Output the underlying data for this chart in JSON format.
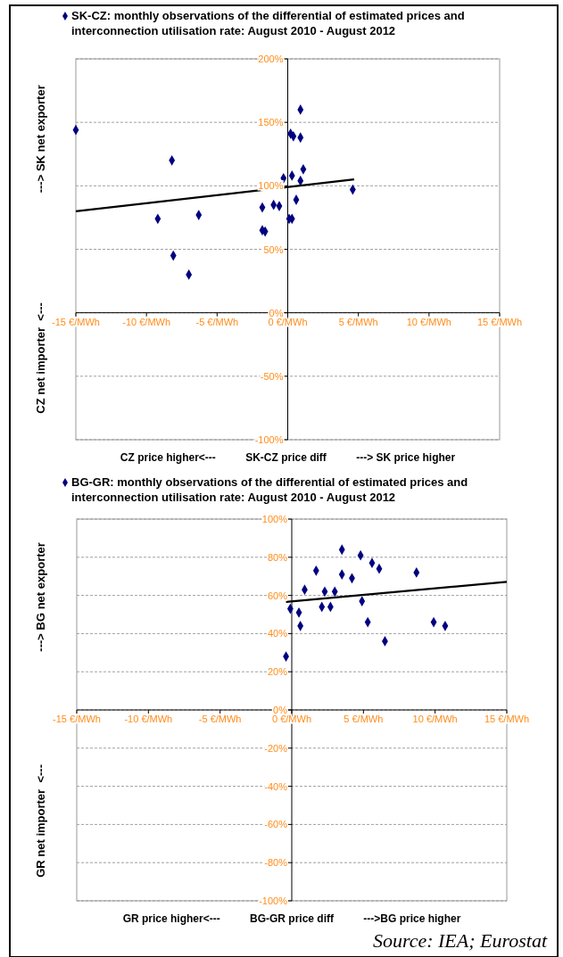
{
  "chart_data": [
    {
      "type": "scatter",
      "legend": "top",
      "marker": "diamond",
      "grid": "y",
      "xlabel": "CZ price higher<---          SK-CZ price diff          ---> SK price higher",
      "ylabel": "CZ net importer  <---                                  ---> SK net exporter",
      "xlim": [
        -15,
        15
      ],
      "ylim": [
        -100,
        200
      ],
      "xticks": [
        {
          "value": -15,
          "label": "-15 €/MWh"
        },
        {
          "value": -10,
          "label": "-10 €/MWh"
        },
        {
          "value": -5,
          "label": "-5 €/MWh"
        },
        {
          "value": 0,
          "label": "0 €/MWh"
        },
        {
          "value": 5,
          "label": "5 €/MWh"
        },
        {
          "value": 10,
          "label": "10 €/MWh"
        },
        {
          "value": 15,
          "label": "15 €/MWh"
        }
      ],
      "yticks": [
        {
          "value": -100,
          "label": "-100%"
        },
        {
          "value": -50,
          "label": "-50%"
        },
        {
          "value": 0,
          "label": "0%"
        },
        {
          "value": 50,
          "label": "50%"
        },
        {
          "value": 100,
          "label": "100%"
        },
        {
          "value": 150,
          "label": "150%"
        },
        {
          "value": 200,
          "label": "200%"
        }
      ],
      "series": [
        {
          "name": "SK-CZ: monthly observations of the differential of estimated prices and interconnection utilisation rate: August 2010 - August 2012",
          "color": "#000080",
          "x": [
            -15,
            0.9,
            0.2,
            0.4,
            0.9,
            -8.2,
            1.1,
            -0.3,
            0.3,
            0.9,
            4.6,
            0.6,
            -1.8,
            -1.0,
            -0.6,
            -9.2,
            -6.3,
            0.1,
            0.3,
            -1.8,
            -1.6,
            -8.1,
            -7.0
          ],
          "values": [
            144,
            160,
            141,
            139,
            138,
            120,
            113,
            106,
            108,
            104,
            97,
            89,
            83,
            85,
            84,
            74,
            77,
            74,
            74,
            65,
            64,
            45,
            30
          ]
        },
        {
          "type": "line",
          "color": "#000000",
          "marker": "none",
          "x": [
            -15,
            4.7
          ],
          "values": [
            80,
            105
          ]
        }
      ]
    },
    {
      "type": "scatter",
      "legend": "top",
      "marker": "diamond",
      "grid": "y",
      "xlabel": "GR price higher<---          BG-GR price diff          --->BG price higher",
      "ylabel": "GR net importer  <---                                   ---> BG net exporter",
      "xlim": [
        -15,
        15
      ],
      "ylim": [
        -100,
        100
      ],
      "xticks": [
        {
          "value": -15,
          "label": "-15 €/MWh"
        },
        {
          "value": -10,
          "label": "-10 €/MWh"
        },
        {
          "value": -5,
          "label": "-5 €/MWh"
        },
        {
          "value": 0,
          "label": "0 €/MWh"
        },
        {
          "value": 5,
          "label": "5 €/MWh"
        },
        {
          "value": 10,
          "label": "10 €/MWh"
        },
        {
          "value": 15,
          "label": "15 €/MWh"
        }
      ],
      "yticks": [
        {
          "value": -100,
          "label": "-100%"
        },
        {
          "value": -80,
          "label": "-80%"
        },
        {
          "value": -60,
          "label": "-60%"
        },
        {
          "value": -40,
          "label": "-40%"
        },
        {
          "value": -20,
          "label": "-20%"
        },
        {
          "value": 0,
          "label": "0%"
        },
        {
          "value": 20,
          "label": "20%"
        },
        {
          "value": 40,
          "label": "40%"
        },
        {
          "value": 60,
          "label": "60%"
        },
        {
          "value": 80,
          "label": "80%"
        },
        {
          "value": 100,
          "label": "100%"
        }
      ],
      "annotations": [
        "Source: IEA; Eurostat"
      ],
      "series": [
        {
          "name": "BG-GR: monthly observations of the differential of estimated prices and interconnection utilisation rate: August 2010 - August 2012",
          "color": "#000080",
          "x": [
            -0.4,
            -0.1,
            0.5,
            0.6,
            0.9,
            1.7,
            2.3,
            2.1,
            2.7,
            3.0,
            3.5,
            3.5,
            4.2,
            4.8,
            4.9,
            5.3,
            5.6,
            6.1,
            6.5,
            8.7,
            9.9,
            10.7
          ],
          "values": [
            28,
            53,
            51,
            44,
            63,
            73,
            62,
            54,
            54,
            62,
            84,
            71,
            69,
            81,
            57,
            46,
            77,
            74,
            36,
            72,
            46,
            44
          ]
        },
        {
          "type": "line",
          "color": "#000000",
          "marker": "none",
          "x": [
            -0.4,
            15
          ],
          "values": [
            56.6,
            67.1
          ]
        }
      ]
    }
  ]
}
